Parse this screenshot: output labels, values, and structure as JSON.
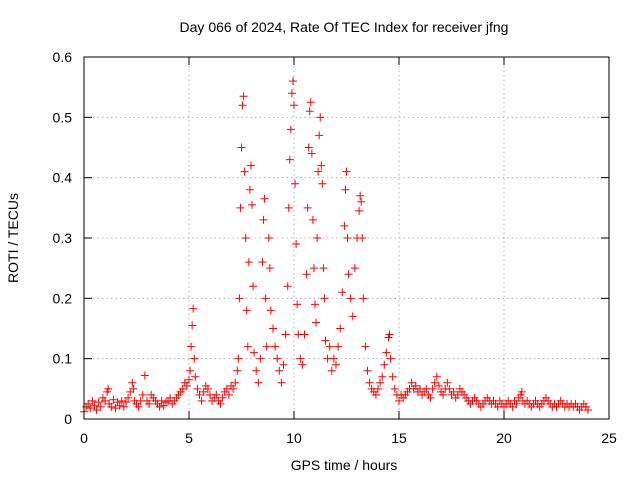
{
  "chart_data": {
    "type": "scatter",
    "title": "Day 066 of 2024, Rate Of TEC Index for receiver jfng",
    "xlabel": "GPS time / hours",
    "ylabel": "ROTI / TECUs",
    "xlim": [
      0,
      25
    ],
    "ylim": [
      0,
      0.6
    ],
    "xticks": [
      0,
      5,
      10,
      15,
      20,
      25
    ],
    "xtick_labels": [
      "0",
      "5",
      "10",
      "15",
      "20",
      "25"
    ],
    "yticks": [
      0,
      0.1,
      0.2,
      0.3,
      0.4,
      0.5,
      0.6
    ],
    "ytick_labels": [
      "0",
      "0.1",
      "0.2",
      "0.3",
      "0.4",
      "0.5",
      "0.6"
    ],
    "grid": true,
    "marker": "+",
    "colors": {
      "series": "#ff0000",
      "grid": "#a0a0a0",
      "axis": "#000000"
    },
    "series": [
      {
        "name": "ROTI",
        "description": "Dense band of ROTI values around 0.01–0.04 TECU/min across 0–24 h, with enhanced activity 7–14 h",
        "points": [
          [
            0.0,
            0.012
          ],
          [
            0.1,
            0.02
          ],
          [
            0.2,
            0.025
          ],
          [
            0.3,
            0.018
          ],
          [
            0.4,
            0.03
          ],
          [
            0.5,
            0.022
          ],
          [
            0.6,
            0.015
          ],
          [
            0.7,
            0.028
          ],
          [
            0.8,
            0.02
          ],
          [
            0.9,
            0.035
          ],
          [
            1.0,
            0.03
          ],
          [
            1.1,
            0.045
          ],
          [
            1.15,
            0.05
          ],
          [
            1.2,
            0.025
          ],
          [
            1.3,
            0.02
          ],
          [
            1.4,
            0.032
          ],
          [
            1.5,
            0.018
          ],
          [
            1.6,
            0.028
          ],
          [
            1.7,
            0.022
          ],
          [
            1.8,
            0.03
          ],
          [
            1.9,
            0.02
          ],
          [
            2.0,
            0.028
          ],
          [
            2.1,
            0.035
          ],
          [
            2.2,
            0.045
          ],
          [
            2.3,
            0.06
          ],
          [
            2.35,
            0.05
          ],
          [
            2.4,
            0.03
          ],
          [
            2.5,
            0.025
          ],
          [
            2.6,
            0.02
          ],
          [
            2.7,
            0.03
          ],
          [
            2.8,
            0.04
          ],
          [
            2.9,
            0.072
          ],
          [
            3.0,
            0.03
          ],
          [
            3.1,
            0.025
          ],
          [
            3.2,
            0.04
          ],
          [
            3.3,
            0.035
          ],
          [
            3.4,
            0.03
          ],
          [
            3.5,
            0.025
          ],
          [
            3.6,
            0.02
          ],
          [
            3.7,
            0.03
          ],
          [
            3.8,
            0.022
          ],
          [
            3.9,
            0.028
          ],
          [
            4.0,
            0.03
          ],
          [
            4.1,
            0.035
          ],
          [
            4.2,
            0.025
          ],
          [
            4.3,
            0.03
          ],
          [
            4.4,
            0.035
          ],
          [
            4.5,
            0.04
          ],
          [
            4.6,
            0.045
          ],
          [
            4.7,
            0.05
          ],
          [
            4.8,
            0.06
          ],
          [
            4.9,
            0.055
          ],
          [
            5.0,
            0.065
          ],
          [
            5.05,
            0.08
          ],
          [
            5.1,
            0.12
          ],
          [
            5.15,
            0.155
          ],
          [
            5.2,
            0.183
          ],
          [
            5.25,
            0.1
          ],
          [
            5.3,
            0.07
          ],
          [
            5.4,
            0.05
          ],
          [
            5.5,
            0.04
          ],
          [
            5.6,
            0.03
          ],
          [
            5.7,
            0.045
          ],
          [
            5.8,
            0.055
          ],
          [
            5.9,
            0.05
          ],
          [
            6.0,
            0.04
          ],
          [
            6.1,
            0.03
          ],
          [
            6.2,
            0.035
          ],
          [
            6.3,
            0.04
          ],
          [
            6.4,
            0.03
          ],
          [
            6.5,
            0.025
          ],
          [
            6.6,
            0.035
          ],
          [
            6.7,
            0.045
          ],
          [
            6.8,
            0.05
          ],
          [
            6.9,
            0.04
          ],
          [
            7.0,
            0.055
          ],
          [
            7.1,
            0.05
          ],
          [
            7.2,
            0.06
          ],
          [
            7.3,
            0.08
          ],
          [
            7.35,
            0.1
          ],
          [
            7.4,
            0.2
          ],
          [
            7.45,
            0.35
          ],
          [
            7.5,
            0.45
          ],
          [
            7.55,
            0.52
          ],
          [
            7.6,
            0.535
          ],
          [
            7.65,
            0.41
          ],
          [
            7.7,
            0.3
          ],
          [
            7.75,
            0.18
          ],
          [
            7.8,
            0.12
          ],
          [
            7.85,
            0.26
          ],
          [
            7.9,
            0.38
          ],
          [
            7.95,
            0.42
          ],
          [
            8.0,
            0.355
          ],
          [
            8.05,
            0.22
          ],
          [
            8.1,
            0.11
          ],
          [
            8.2,
            0.08
          ],
          [
            8.3,
            0.06
          ],
          [
            8.4,
            0.1
          ],
          [
            8.5,
            0.26
          ],
          [
            8.55,
            0.33
          ],
          [
            8.6,
            0.365
          ],
          [
            8.65,
            0.2
          ],
          [
            8.7,
            0.12
          ],
          [
            8.8,
            0.3
          ],
          [
            8.85,
            0.25
          ],
          [
            8.9,
            0.18
          ],
          [
            9.0,
            0.15
          ],
          [
            9.1,
            0.12
          ],
          [
            9.2,
            0.1
          ],
          [
            9.3,
            0.08
          ],
          [
            9.4,
            0.06
          ],
          [
            9.5,
            0.09
          ],
          [
            9.6,
            0.14
          ],
          [
            9.7,
            0.22
          ],
          [
            9.75,
            0.35
          ],
          [
            9.8,
            0.43
          ],
          [
            9.85,
            0.48
          ],
          [
            9.9,
            0.54
          ],
          [
            9.95,
            0.56
          ],
          [
            10.0,
            0.52
          ],
          [
            10.05,
            0.39
          ],
          [
            10.1,
            0.29
          ],
          [
            10.15,
            0.19
          ],
          [
            10.2,
            0.14
          ],
          [
            10.3,
            0.1
          ],
          [
            10.4,
            0.09
          ],
          [
            10.5,
            0.14
          ],
          [
            10.6,
            0.24
          ],
          [
            10.65,
            0.35
          ],
          [
            10.7,
            0.45
          ],
          [
            10.75,
            0.51
          ],
          [
            10.8,
            0.525
          ],
          [
            10.85,
            0.44
          ],
          [
            10.9,
            0.33
          ],
          [
            10.95,
            0.25
          ],
          [
            11.0,
            0.19
          ],
          [
            11.05,
            0.16
          ],
          [
            11.1,
            0.3
          ],
          [
            11.15,
            0.41
          ],
          [
            11.2,
            0.47
          ],
          [
            11.25,
            0.5
          ],
          [
            11.3,
            0.42
          ],
          [
            11.35,
            0.39
          ],
          [
            11.4,
            0.25
          ],
          [
            11.45,
            0.2
          ],
          [
            11.5,
            0.13
          ],
          [
            11.6,
            0.1
          ],
          [
            11.7,
            0.12
          ],
          [
            11.8,
            0.08
          ],
          [
            11.9,
            0.1
          ],
          [
            12.0,
            0.09
          ],
          [
            12.1,
            0.12
          ],
          [
            12.2,
            0.15
          ],
          [
            12.3,
            0.21
          ],
          [
            12.4,
            0.32
          ],
          [
            12.45,
            0.38
          ],
          [
            12.5,
            0.41
          ],
          [
            12.55,
            0.3
          ],
          [
            12.6,
            0.24
          ],
          [
            12.7,
            0.2
          ],
          [
            12.8,
            0.17
          ],
          [
            12.9,
            0.25
          ],
          [
            13.0,
            0.3
          ],
          [
            13.1,
            0.345
          ],
          [
            13.15,
            0.37
          ],
          [
            13.2,
            0.36
          ],
          [
            13.25,
            0.3
          ],
          [
            13.3,
            0.2
          ],
          [
            13.4,
            0.12
          ],
          [
            13.5,
            0.08
          ],
          [
            13.6,
            0.06
          ],
          [
            13.7,
            0.05
          ],
          [
            13.8,
            0.045
          ],
          [
            13.9,
            0.04
          ],
          [
            14.0,
            0.05
          ],
          [
            14.1,
            0.06
          ],
          [
            14.2,
            0.07
          ],
          [
            14.3,
            0.09
          ],
          [
            14.4,
            0.11
          ],
          [
            14.5,
            0.135
          ],
          [
            14.55,
            0.14
          ],
          [
            14.6,
            0.1
          ],
          [
            14.7,
            0.07
          ],
          [
            14.8,
            0.05
          ],
          [
            14.9,
            0.04
          ],
          [
            15.0,
            0.03
          ],
          [
            15.1,
            0.04
          ],
          [
            15.2,
            0.035
          ],
          [
            15.3,
            0.04
          ],
          [
            15.4,
            0.045
          ],
          [
            15.5,
            0.05
          ],
          [
            15.6,
            0.06
          ],
          [
            15.7,
            0.05
          ],
          [
            15.8,
            0.055
          ],
          [
            15.9,
            0.045
          ],
          [
            16.0,
            0.05
          ],
          [
            16.1,
            0.04
          ],
          [
            16.2,
            0.045
          ],
          [
            16.3,
            0.05
          ],
          [
            16.4,
            0.04
          ],
          [
            16.5,
            0.035
          ],
          [
            16.6,
            0.05
          ],
          [
            16.7,
            0.06
          ],
          [
            16.8,
            0.07
          ],
          [
            16.9,
            0.055
          ],
          [
            17.0,
            0.045
          ],
          [
            17.1,
            0.04
          ],
          [
            17.2,
            0.05
          ],
          [
            17.3,
            0.06
          ],
          [
            17.4,
            0.05
          ],
          [
            17.5,
            0.04
          ],
          [
            17.6,
            0.045
          ],
          [
            17.7,
            0.035
          ],
          [
            17.8,
            0.04
          ],
          [
            17.9,
            0.05
          ],
          [
            18.0,
            0.045
          ],
          [
            18.1,
            0.04
          ],
          [
            18.2,
            0.035
          ],
          [
            18.3,
            0.03
          ],
          [
            18.4,
            0.025
          ],
          [
            18.5,
            0.03
          ],
          [
            18.6,
            0.035
          ],
          [
            18.7,
            0.03
          ],
          [
            18.8,
            0.025
          ],
          [
            18.9,
            0.02
          ],
          [
            19.0,
            0.025
          ],
          [
            19.1,
            0.03
          ],
          [
            19.2,
            0.035
          ],
          [
            19.3,
            0.03
          ],
          [
            19.4,
            0.025
          ],
          [
            19.5,
            0.03
          ],
          [
            19.6,
            0.025
          ],
          [
            19.7,
            0.02
          ],
          [
            19.8,
            0.03
          ],
          [
            19.9,
            0.025
          ],
          [
            20.0,
            0.02
          ],
          [
            20.1,
            0.025
          ],
          [
            20.2,
            0.03
          ],
          [
            20.3,
            0.025
          ],
          [
            20.4,
            0.02
          ],
          [
            20.5,
            0.03
          ],
          [
            20.6,
            0.025
          ],
          [
            20.7,
            0.035
          ],
          [
            20.8,
            0.04
          ],
          [
            20.85,
            0.045
          ],
          [
            20.9,
            0.03
          ],
          [
            21.0,
            0.025
          ],
          [
            21.1,
            0.03
          ],
          [
            21.2,
            0.025
          ],
          [
            21.3,
            0.02
          ],
          [
            21.4,
            0.025
          ],
          [
            21.5,
            0.03
          ],
          [
            21.6,
            0.025
          ],
          [
            21.7,
            0.02
          ],
          [
            21.8,
            0.025
          ],
          [
            21.9,
            0.03
          ],
          [
            22.0,
            0.035
          ],
          [
            22.1,
            0.03
          ],
          [
            22.2,
            0.025
          ],
          [
            22.3,
            0.02
          ],
          [
            22.4,
            0.025
          ],
          [
            22.5,
            0.02
          ],
          [
            22.6,
            0.025
          ],
          [
            22.7,
            0.03
          ],
          [
            22.8,
            0.025
          ],
          [
            22.9,
            0.02
          ],
          [
            23.0,
            0.025
          ],
          [
            23.1,
            0.02
          ],
          [
            23.2,
            0.025
          ],
          [
            23.3,
            0.02
          ],
          [
            23.4,
            0.025
          ],
          [
            23.5,
            0.02
          ],
          [
            23.6,
            0.015
          ],
          [
            23.7,
            0.02
          ],
          [
            23.8,
            0.025
          ],
          [
            23.9,
            0.02
          ],
          [
            24.0,
            0.015
          ]
        ]
      }
    ]
  }
}
